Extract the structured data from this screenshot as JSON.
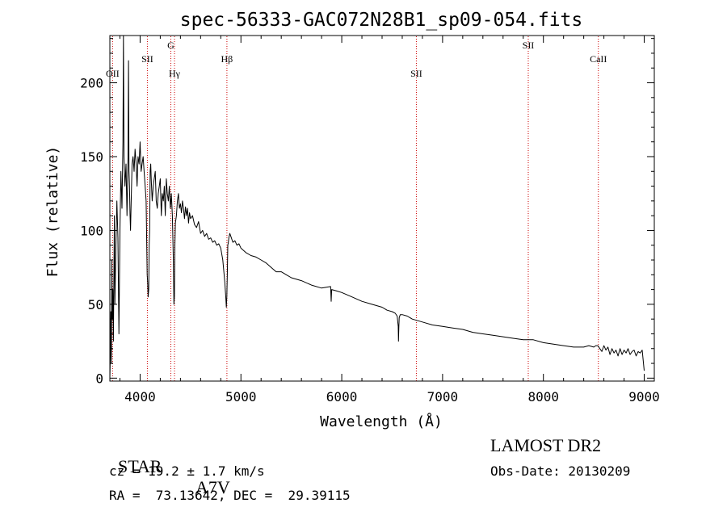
{
  "chart_data": {
    "type": "line",
    "title": "spec-56333-GAC072N28B1_sp09-054.fits",
    "xlabel": "Wavelength (Å)",
    "ylabel": "Flux (relative)",
    "xlim": [
      3700,
      9100
    ],
    "ylim": [
      -2,
      232
    ],
    "x_ticks": [
      4000,
      5000,
      6000,
      7000,
      8000,
      9000
    ],
    "y_ticks": [
      0,
      50,
      100,
      150,
      200
    ],
    "grid": false,
    "line_color": "#000000",
    "marker_color": "#cc0000",
    "series": [
      {
        "x": [
          3700,
          3705,
          3710,
          3715,
          3720,
          3725,
          3730,
          3735,
          3740,
          3745,
          3750,
          3760,
          3770,
          3780,
          3790,
          3800,
          3810,
          3820,
          3830,
          3835,
          3840,
          3850,
          3860,
          3870,
          3880,
          3885,
          3890,
          3895,
          3900,
          3905,
          3910,
          3920,
          3930,
          3940,
          3950,
          3960,
          3970,
          3980,
          3990,
          4000,
          4010,
          4020,
          4030,
          4040,
          4050,
          4060,
          4070,
          4075,
          4080,
          4085,
          4090,
          4095,
          4100,
          4105,
          4110,
          4120,
          4130,
          4140,
          4150,
          4160,
          4170,
          4180,
          4190,
          4200,
          4210,
          4220,
          4230,
          4240,
          4250,
          4260,
          4270,
          4280,
          4290,
          4300,
          4310,
          4320,
          4330,
          4335,
          4340,
          4345,
          4350,
          4360,
          4370,
          4380,
          4390,
          4400,
          4410,
          4420,
          4430,
          4440,
          4450,
          4460,
          4470,
          4480,
          4490,
          4500,
          4520,
          4540,
          4560,
          4580,
          4600,
          4620,
          4640,
          4660,
          4680,
          4700,
          4720,
          4740,
          4760,
          4780,
          4800,
          4820,
          4840,
          4850,
          4855,
          4860,
          4865,
          4870,
          4875,
          4880,
          4890,
          4900,
          4920,
          4940,
          4960,
          4980,
          5000,
          5050,
          5100,
          5150,
          5200,
          5250,
          5300,
          5350,
          5400,
          5450,
          5500,
          5600,
          5700,
          5800,
          5890,
          5895,
          5900,
          5950,
          6000,
          6100,
          6200,
          6300,
          6400,
          6450,
          6500,
          6530,
          6550,
          6560,
          6563,
          6567,
          6570,
          6580,
          6600,
          6650,
          6700,
          6800,
          6900,
          7000,
          7100,
          7200,
          7300,
          7400,
          7500,
          7600,
          7700,
          7800,
          7900,
          8000,
          8100,
          8200,
          8300,
          8400,
          8450,
          8500,
          8520,
          8540,
          8560,
          8580,
          8600,
          8620,
          8640,
          8660,
          8680,
          8700,
          8720,
          8740,
          8760,
          8780,
          8800,
          8820,
          8840,
          8860,
          8880,
          8900,
          8920,
          8940,
          8960,
          8980,
          9000
        ],
        "y": [
          0,
          15,
          45,
          10,
          80,
          40,
          60,
          25,
          70,
          110,
          50,
          90,
          120,
          95,
          30,
          100,
          140,
          115,
          160,
          232,
          150,
          130,
          145,
          110,
          150,
          215,
          140,
          130,
          110,
          100,
          115,
          145,
          150,
          140,
          155,
          145,
          130,
          150,
          145,
          160,
          140,
          145,
          150,
          140,
          130,
          120,
          70,
          65,
          55,
          60,
          90,
          100,
          140,
          145,
          135,
          120,
          130,
          135,
          140,
          120,
          115,
          125,
          130,
          135,
          110,
          125,
          120,
          130,
          110,
          135,
          125,
          120,
          130,
          115,
          125,
          110,
          80,
          50,
          55,
          90,
          105,
          110,
          120,
          125,
          115,
          118,
          112,
          120,
          115,
          108,
          116,
          110,
          115,
          105,
          112,
          108,
          110,
          104,
          102,
          106,
          98,
          100,
          96,
          98,
          94,
          95,
          92,
          93,
          90,
          91,
          88,
          80,
          65,
          55,
          48,
          55,
          70,
          90,
          92,
          95,
          98,
          96,
          92,
          93,
          90,
          91,
          88,
          85,
          83,
          82,
          80,
          78,
          75,
          72,
          72,
          70,
          68,
          66,
          63,
          61,
          62,
          52,
          60,
          59,
          58,
          55,
          52,
          50,
          48,
          46,
          45,
          44,
          42,
          35,
          25,
          35,
          41,
          43,
          43,
          42,
          40,
          38,
          36,
          35,
          34,
          33,
          31,
          30,
          29,
          28,
          27,
          26,
          26,
          24,
          23,
          22,
          21,
          21,
          22,
          21,
          22,
          22,
          20,
          18,
          22,
          19,
          21,
          16,
          20,
          17,
          19,
          15,
          20,
          16,
          19,
          17,
          20,
          16,
          18,
          19,
          15,
          18,
          17,
          19,
          5
        ]
      }
    ],
    "lines": [
      {
        "name": "OII",
        "x": 3727,
        "row": 2
      },
      {
        "name": "SII",
        "x": 4072,
        "row": 1
      },
      {
        "name": "G",
        "x": 4305,
        "row": 0
      },
      {
        "name": "Hγ",
        "x": 4341,
        "row": 2
      },
      {
        "name": "Hβ",
        "x": 4861,
        "row": 1
      },
      {
        "name": "SII",
        "x": 6740,
        "row": 2
      },
      {
        "name": "SII",
        "x": 7850,
        "row": 0
      },
      {
        "name": "CaII",
        "x": 8545,
        "row": 1
      }
    ]
  },
  "info": {
    "class_label": "STAR",
    "subclass": "A7V",
    "survey": "LAMOST DR2",
    "cz": "cz = 19.2 ± 1.7 km/s",
    "obs_date": "Obs-Date: 20130209",
    "coords": "RA =  73.13642, DEC =  29.39115"
  }
}
